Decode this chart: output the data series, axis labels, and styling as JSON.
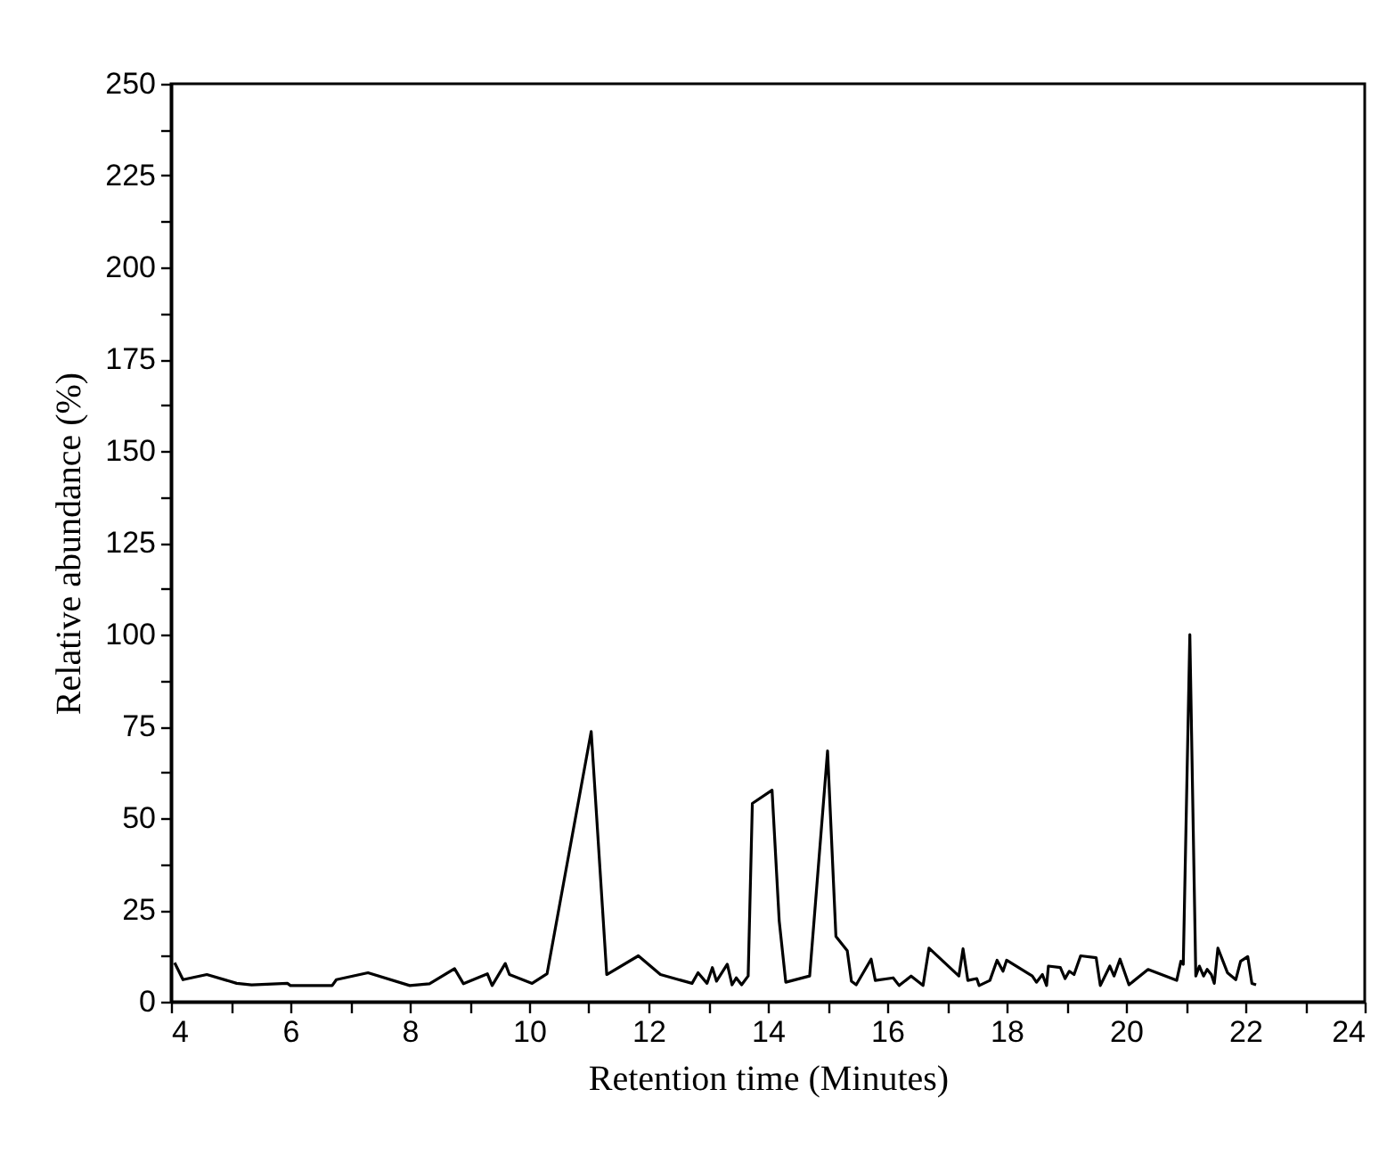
{
  "chart_data": {
    "type": "line",
    "xlabel": "Retention time (Minutes)",
    "ylabel": "Relative abundance (%)",
    "xlim": [
      4,
      24
    ],
    "ylim": [
      0,
      250
    ],
    "xticks": [
      4,
      {
        "value": 5,
        "label": null
      },
      6,
      {
        "value": 7,
        "label": null
      },
      8,
      {
        "value": 9,
        "label": null
      },
      10,
      {
        "value": 11,
        "label": null
      },
      12,
      {
        "value": 13,
        "label": null
      },
      14,
      {
        "value": 15,
        "label": null
      },
      16,
      {
        "value": 17,
        "label": null
      },
      18,
      {
        "value": 19,
        "label": null
      },
      20,
      {
        "value": 21,
        "label": null
      },
      22,
      {
        "value": 23,
        "label": null
      },
      24
    ],
    "yticks": [
      0,
      {
        "value": 12.5,
        "label": null
      },
      25,
      {
        "value": 37.5,
        "label": null
      },
      50,
      {
        "value": 62.5,
        "label": null
      },
      75,
      {
        "value": 87.5,
        "label": null
      },
      100,
      {
        "value": 112.5,
        "label": null
      },
      125,
      {
        "value": 137.5,
        "label": null
      },
      150,
      {
        "value": 162.5,
        "label": null
      },
      175,
      {
        "value": 187.5,
        "label": null
      },
      200,
      {
        "value": 212.5,
        "label": null
      },
      225,
      {
        "value": 237.5,
        "label": null
      },
      250
    ],
    "grid": false,
    "marker": "none",
    "line_style": "solid",
    "x": [
      4.06,
      4.2,
      4.6,
      5.1,
      5.35,
      5.95,
      6.0,
      6.7,
      6.77,
      7.3,
      8.0,
      8.33,
      8.75,
      8.9,
      9.3,
      9.38,
      9.6,
      9.67,
      10.05,
      10.3,
      11.04,
      11.3,
      11.83,
      12.2,
      12.73,
      12.83,
      12.98,
      13.07,
      13.14,
      13.32,
      13.4,
      13.47,
      13.56,
      13.67,
      13.74,
      14.07,
      14.19,
      14.3,
      14.7,
      15.0,
      15.14,
      15.33,
      15.4,
      15.48,
      15.73,
      15.8,
      16.1,
      16.2,
      16.4,
      16.6,
      16.7,
      17.2,
      17.27,
      17.35,
      17.5,
      17.54,
      17.72,
      17.84,
      17.94,
      18.0,
      18.43,
      18.5,
      18.6,
      18.67,
      18.7,
      18.9,
      18.98,
      19.05,
      19.13,
      19.24,
      19.5,
      19.57,
      19.73,
      19.8,
      19.9,
      20.05,
      20.37,
      20.85,
      20.92,
      20.96,
      21.07,
      21.17,
      21.23,
      21.3,
      21.36,
      21.43,
      21.48,
      21.54,
      21.7,
      21.84,
      21.92,
      22.04,
      22.11,
      22.18
    ],
    "series": [
      {
        "color": "#000000",
        "values": [
          10.6,
          6,
          7.4,
          5,
          4.6,
          5,
          4.4,
          4.4,
          6,
          7.9,
          4.4,
          4.9,
          9,
          4.9,
          7.6,
          4.4,
          10.4,
          7.4,
          5,
          7.6,
          73.6,
          7.4,
          12.5,
          7.4,
          5,
          7.9,
          5,
          9.3,
          5.6,
          10.2,
          4.6,
          6.5,
          4.6,
          7,
          54,
          57.6,
          22,
          5.3,
          7,
          68.3,
          17.8,
          13.9,
          5.6,
          4.6,
          11.6,
          5.8,
          6.5,
          4.4,
          7,
          4.4,
          14.6,
          7,
          14.4,
          5.8,
          6.3,
          4.4,
          5.8,
          11.3,
          8.3,
          11.3,
          7,
          5.3,
          7.4,
          4.4,
          9.7,
          9.3,
          6.3,
          8.3,
          7.4,
          12.5,
          12,
          4.4,
          9.7,
          7,
          11.6,
          4.6,
          8.8,
          5.8,
          11,
          10.2,
          100,
          7,
          9.7,
          7,
          8.8,
          7.4,
          5,
          14.6,
          7.9,
          6,
          11,
          12.3,
          5,
          4.6
        ]
      }
    ]
  }
}
